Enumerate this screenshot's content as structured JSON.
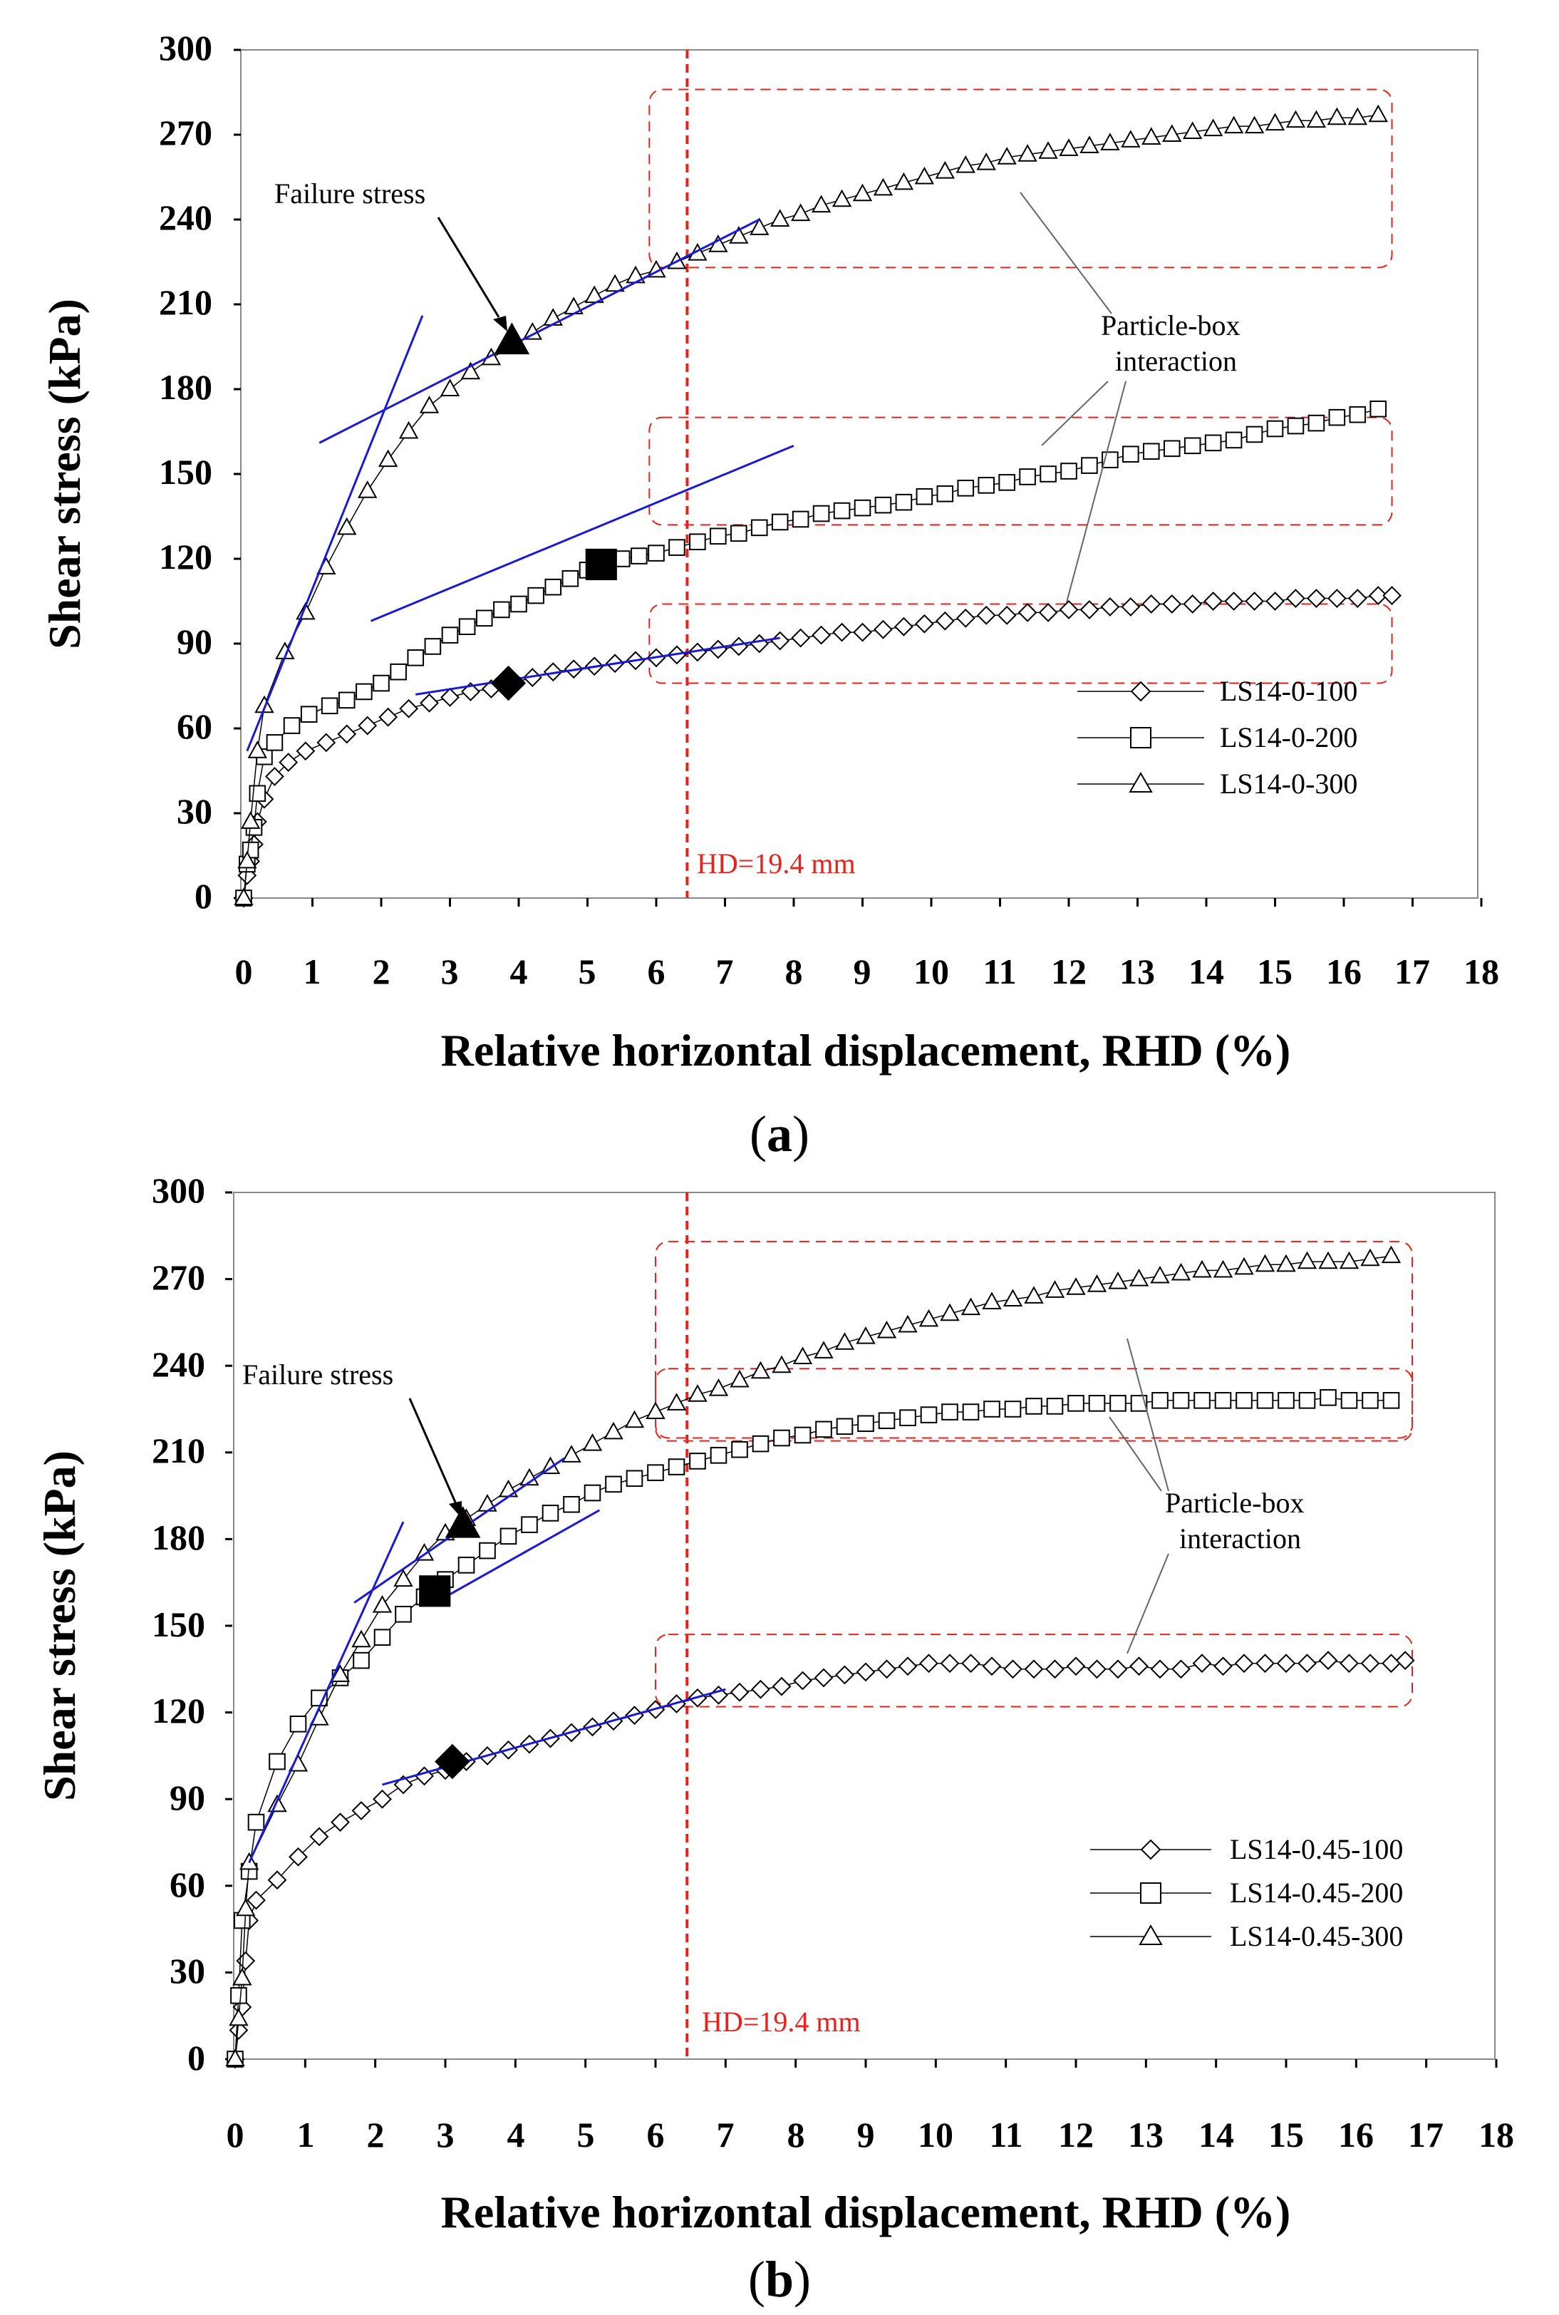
{
  "figure": {
    "caption_a_open": "(",
    "caption_a_letter": "a",
    "caption_a_close": ")",
    "caption_b_open": "(",
    "caption_b_letter": "b",
    "caption_b_close": ")"
  },
  "colors": {
    "series": "#000000",
    "fit_line": "#1a1ad4",
    "hd_line": "#e8221a",
    "box": "#e8221a"
  },
  "chart_data": [
    {
      "type": "line",
      "panel": "a",
      "ylabel": "Shear stress (kPa)",
      "xlabel": "Relative horizontal displacement, RHD (%)",
      "xlim": [
        0,
        18
      ],
      "ylim": [
        0,
        300
      ],
      "xticks": [
        0,
        1,
        2,
        3,
        4,
        5,
        6,
        7,
        8,
        9,
        10,
        11,
        12,
        13,
        14,
        15,
        16,
        17,
        18
      ],
      "yticks": [
        0,
        30,
        60,
        90,
        120,
        150,
        180,
        210,
        240,
        270,
        300
      ],
      "legend": [
        "LS14-0-100",
        "LS14-0-200",
        "LS14-0-300"
      ],
      "legend_position": "center-right",
      "vline": {
        "x": 6.45,
        "label": "HD=19.4 mm"
      },
      "annotations": {
        "failure": "Failure stress",
        "interaction_1": "Particle-box",
        "interaction_2": "interaction"
      },
      "series": [
        {
          "name": "LS14-0-100",
          "marker": "diamond",
          "x": [
            0,
            0.05,
            0.1,
            0.15,
            0.2,
            0.3,
            0.45,
            0.65,
            0.9,
            1.2,
            1.5,
            1.8,
            2.1,
            2.4,
            2.7,
            3.0,
            3.3,
            3.6,
            3.9,
            4.2,
            4.5,
            4.8,
            5.1,
            5.4,
            5.7,
            6.0,
            6.3,
            6.6,
            6.9,
            7.2,
            7.5,
            7.8,
            8.1,
            8.4,
            8.7,
            9.0,
            9.3,
            9.6,
            9.9,
            10.2,
            10.5,
            10.8,
            11.1,
            11.4,
            11.7,
            12.0,
            12.3,
            12.6,
            12.9,
            13.2,
            13.5,
            13.8,
            14.1,
            14.4,
            14.7,
            15.0,
            15.3,
            15.6,
            15.9,
            16.2,
            16.5,
            16.7
          ],
          "y": [
            0,
            8,
            13,
            19,
            27,
            35,
            43,
            48,
            52,
            55,
            58,
            61,
            64,
            67,
            69,
            71,
            73,
            74,
            76,
            78,
            80,
            81,
            82,
            83,
            84,
            85,
            86,
            87,
            88,
            89,
            90,
            91,
            92,
            93,
            94,
            94,
            95,
            96,
            97,
            98,
            99,
            100,
            100,
            101,
            101,
            102,
            102,
            103,
            103,
            104,
            104,
            104,
            105,
            105,
            105,
            105,
            106,
            106,
            106,
            106,
            107,
            107
          ]
        },
        {
          "name": "LS14-0-200",
          "marker": "square",
          "x": [
            0,
            0.05,
            0.1,
            0.15,
            0.2,
            0.3,
            0.45,
            0.7,
            0.95,
            1.25,
            1.5,
            1.75,
            2.0,
            2.25,
            2.5,
            2.75,
            3.0,
            3.25,
            3.5,
            3.75,
            4.0,
            4.25,
            4.5,
            4.75,
            5.0,
            5.25,
            5.5,
            5.75,
            6.0,
            6.3,
            6.6,
            6.9,
            7.2,
            7.5,
            7.8,
            8.1,
            8.4,
            8.7,
            9.0,
            9.3,
            9.6,
            9.9,
            10.2,
            10.5,
            10.8,
            11.1,
            11.4,
            11.7,
            12.0,
            12.3,
            12.6,
            12.9,
            13.2,
            13.5,
            13.8,
            14.1,
            14.4,
            14.7,
            15.0,
            15.3,
            15.6,
            15.9,
            16.2,
            16.5
          ],
          "y": [
            0,
            12,
            17,
            25,
            37,
            50,
            55,
            61,
            65,
            68,
            70,
            73,
            76,
            80,
            85,
            89,
            93,
            96,
            99,
            102,
            104,
            107,
            110,
            113,
            116,
            118,
            120,
            121,
            122,
            124,
            126,
            128,
            129,
            131,
            133,
            134,
            136,
            137,
            138,
            139,
            140,
            142,
            143,
            145,
            146,
            147,
            149,
            150,
            151,
            153,
            155,
            157,
            158,
            159,
            160,
            161,
            162,
            164,
            166,
            167,
            168,
            170,
            171,
            173
          ]
        },
        {
          "name": "LS14-0-300",
          "marker": "triangle",
          "x": [
            0,
            0.05,
            0.1,
            0.2,
            0.3,
            0.6,
            0.9,
            1.2,
            1.5,
            1.8,
            2.1,
            2.4,
            2.7,
            3.0,
            3.3,
            3.6,
            3.9,
            4.2,
            4.5,
            4.8,
            5.1,
            5.4,
            5.7,
            6.0,
            6.3,
            6.6,
            6.9,
            7.2,
            7.5,
            7.8,
            8.1,
            8.4,
            8.7,
            9.0,
            9.3,
            9.6,
            9.9,
            10.2,
            10.5,
            10.8,
            11.1,
            11.4,
            11.7,
            12.0,
            12.3,
            12.6,
            12.9,
            13.2,
            13.5,
            13.8,
            14.1,
            14.4,
            14.7,
            15.0,
            15.3,
            15.6,
            15.9,
            16.2,
            16.5
          ],
          "y": [
            0,
            13,
            27,
            52,
            68,
            87,
            101,
            117,
            131,
            144,
            155,
            165,
            174,
            180,
            186,
            191,
            195,
            200,
            205,
            209,
            213,
            217,
            220,
            222,
            225,
            228,
            231,
            234,
            237,
            240,
            242,
            245,
            247,
            249,
            251,
            253,
            255,
            257,
            259,
            260,
            262,
            263,
            264,
            265,
            266,
            267,
            268,
            269,
            270,
            271,
            272,
            273,
            273,
            274,
            275,
            275,
            276,
            276,
            277
          ]
        }
      ],
      "failure_points": [
        {
          "series": "LS14-0-100",
          "x": 3.85,
          "y": 76,
          "marker": "diamond"
        },
        {
          "series": "LS14-0-200",
          "x": 5.2,
          "y": 118,
          "marker": "square"
        },
        {
          "series": "LS14-0-300",
          "x": 3.9,
          "y": 197,
          "marker": "triangle"
        }
      ],
      "fit_lines": [
        {
          "x1": 0.05,
          "y1": 52,
          "x2": 2.6,
          "y2": 206
        },
        {
          "x1": 1.1,
          "y1": 161,
          "x2": 7.5,
          "y2": 240
        },
        {
          "x1": 1.85,
          "y1": 98,
          "x2": 8.0,
          "y2": 160
        },
        {
          "x1": 2.5,
          "y1": 72,
          "x2": 7.8,
          "y2": 92
        }
      ],
      "boxes": [
        {
          "x1": 5.9,
          "y1": 223,
          "x2": 16.7,
          "y2": 286
        },
        {
          "x1": 5.9,
          "y1": 132,
          "x2": 16.7,
          "y2": 170
        },
        {
          "x1": 5.9,
          "y1": 76,
          "x2": 16.7,
          "y2": 104
        }
      ]
    },
    {
      "type": "line",
      "panel": "b",
      "ylabel": "Shear stress (kPa)",
      "xlabel": "Relative horizontal displacement, RHD (%)",
      "xlim": [
        0,
        18
      ],
      "ylim": [
        0,
        300
      ],
      "xticks": [
        0,
        1,
        2,
        3,
        4,
        5,
        6,
        7,
        8,
        9,
        10,
        11,
        12,
        13,
        14,
        15,
        16,
        17,
        18
      ],
      "yticks": [
        0,
        30,
        60,
        90,
        120,
        150,
        180,
        210,
        240,
        270,
        300
      ],
      "legend": [
        "LS14-0.45-100",
        "LS14-0.45-200",
        "LS14-0.45-300"
      ],
      "legend_position": "lower-right",
      "vline": {
        "x": 6.45,
        "label": "HD=19.4 mm"
      },
      "annotations": {
        "failure": "Failure stress",
        "interaction_1": "Particle-box",
        "interaction_2": "interaction"
      },
      "series": [
        {
          "name": "LS14-0.45-100",
          "marker": "diamond",
          "x": [
            0,
            0.05,
            0.1,
            0.15,
            0.2,
            0.3,
            0.6,
            0.9,
            1.2,
            1.5,
            1.8,
            2.1,
            2.4,
            2.7,
            3.0,
            3.3,
            3.6,
            3.9,
            4.2,
            4.5,
            4.8,
            5.1,
            5.4,
            5.7,
            6.0,
            6.3,
            6.6,
            6.9,
            7.2,
            7.5,
            7.8,
            8.1,
            8.4,
            8.7,
            9.0,
            9.3,
            9.6,
            9.9,
            10.2,
            10.5,
            10.8,
            11.1,
            11.4,
            11.7,
            12.0,
            12.3,
            12.6,
            12.9,
            13.2,
            13.5,
            13.8,
            14.1,
            14.4,
            14.7,
            15.0,
            15.3,
            15.6,
            15.9,
            16.2,
            16.5,
            16.7
          ],
          "y": [
            0,
            10,
            18,
            34,
            48,
            55,
            62,
            70,
            77,
            82,
            86,
            90,
            95,
            98,
            100,
            103,
            105,
            107,
            109,
            111,
            113,
            115,
            117,
            119,
            121,
            123,
            125,
            126,
            127,
            128,
            129,
            131,
            132,
            133,
            134,
            135,
            136,
            137,
            137,
            137,
            136,
            135,
            135,
            135,
            136,
            135,
            135,
            136,
            135,
            135,
            137,
            136,
            137,
            137,
            137,
            137,
            138,
            137,
            137,
            137,
            138
          ]
        },
        {
          "name": "LS14-0.45-200",
          "marker": "square",
          "x": [
            0,
            0.05,
            0.1,
            0.2,
            0.3,
            0.6,
            0.9,
            1.2,
            1.5,
            1.8,
            2.1,
            2.4,
            2.7,
            3.0,
            3.3,
            3.6,
            3.9,
            4.2,
            4.5,
            4.8,
            5.1,
            5.4,
            5.7,
            6.0,
            6.3,
            6.6,
            6.9,
            7.2,
            7.5,
            7.8,
            8.1,
            8.4,
            8.7,
            9.0,
            9.3,
            9.6,
            9.9,
            10.2,
            10.5,
            10.8,
            11.1,
            11.4,
            11.7,
            12.0,
            12.3,
            12.6,
            12.9,
            13.2,
            13.5,
            13.8,
            14.1,
            14.4,
            14.7,
            15.0,
            15.3,
            15.6,
            15.9,
            16.2,
            16.5
          ],
          "y": [
            0,
            22,
            48,
            65,
            82,
            103,
            116,
            125,
            132,
            138,
            146,
            154,
            160,
            166,
            171,
            176,
            181,
            185,
            189,
            192,
            196,
            199,
            201,
            203,
            205,
            207,
            209,
            211,
            213,
            215,
            216,
            218,
            219,
            220,
            221,
            222,
            223,
            224,
            224,
            225,
            225,
            226,
            226,
            227,
            227,
            227,
            227,
            228,
            228,
            228,
            228,
            228,
            228,
            228,
            228,
            229,
            228,
            228,
            228
          ]
        },
        {
          "name": "LS14-0.45-300",
          "marker": "triangle",
          "x": [
            0,
            0.05,
            0.1,
            0.15,
            0.2,
            0.6,
            0.9,
            1.2,
            1.5,
            1.8,
            2.1,
            2.4,
            2.7,
            3.0,
            3.3,
            3.6,
            3.9,
            4.2,
            4.5,
            4.8,
            5.1,
            5.4,
            5.7,
            6.0,
            6.3,
            6.6,
            6.9,
            7.2,
            7.5,
            7.8,
            8.1,
            8.4,
            8.7,
            9.0,
            9.3,
            9.6,
            9.9,
            10.2,
            10.5,
            10.8,
            11.1,
            11.4,
            11.7,
            12.0,
            12.3,
            12.6,
            12.9,
            13.2,
            13.5,
            13.8,
            14.1,
            14.4,
            14.7,
            15.0,
            15.3,
            15.6,
            15.9,
            16.2,
            16.5
          ],
          "y": [
            0,
            14,
            28,
            52,
            68,
            88,
            102,
            118,
            133,
            145,
            157,
            166,
            175,
            182,
            187,
            192,
            197,
            201,
            205,
            209,
            213,
            217,
            221,
            224,
            227,
            230,
            232,
            235,
            238,
            240,
            243,
            245,
            248,
            250,
            252,
            254,
            256,
            258,
            260,
            262,
            263,
            264,
            266,
            267,
            268,
            269,
            270,
            271,
            272,
            273,
            273,
            274,
            275,
            275,
            276,
            276,
            276,
            277,
            278
          ]
        }
      ],
      "failure_points": [
        {
          "series": "LS14-0.45-100",
          "x": 3.1,
          "y": 103,
          "marker": "diamond"
        },
        {
          "series": "LS14-0.45-200",
          "x": 2.85,
          "y": 162,
          "marker": "square"
        },
        {
          "series": "LS14-0.45-300",
          "x": 3.25,
          "y": 185,
          "marker": "triangle"
        }
      ],
      "fit_lines": [
        {
          "x1": 0.2,
          "y1": 68,
          "x2": 2.4,
          "y2": 186
        },
        {
          "x1": 1.7,
          "y1": 158,
          "x2": 4.7,
          "y2": 208
        },
        {
          "x1": 2.1,
          "y1": 95,
          "x2": 7.0,
          "y2": 128
        },
        {
          "x1": 3.0,
          "y1": 160,
          "x2": 5.2,
          "y2": 190
        }
      ],
      "boxes": [
        {
          "x1": 6.0,
          "y1": 215,
          "x2": 16.8,
          "y2": 283
        },
        {
          "x1": 6.0,
          "y1": 214,
          "x2": 16.8,
          "y2": 239
        },
        {
          "x1": 6.0,
          "y1": 122,
          "x2": 16.8,
          "y2": 147
        }
      ]
    }
  ]
}
